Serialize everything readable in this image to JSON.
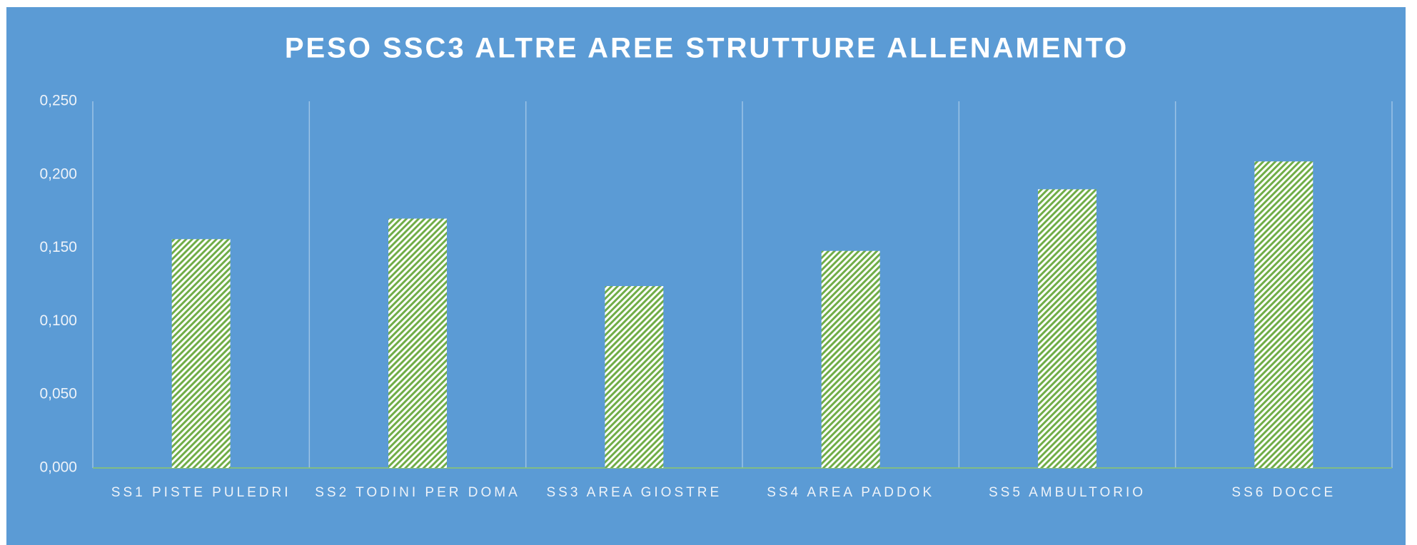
{
  "chart_data": {
    "type": "bar",
    "title": "PESO SSC3 ALTRE AREE STRUTTURE ALLENAMENTO",
    "categories": [
      "SS1 PISTE PULEDRI",
      "SS2 TODINI PER DOMA",
      "SS3 AREA GIOSTRE",
      "SS4 AREA PADDOK",
      "SS5 AMBULTORIO",
      "SS6 DOCCE"
    ],
    "values": [
      0.156,
      0.17,
      0.124,
      0.148,
      0.19,
      0.209
    ],
    "color": "#70ad47",
    "ylim": [
      0,
      0.25
    ],
    "yticks": [
      {
        "value": 0,
        "label": "0,000"
      },
      {
        "value": 0.05,
        "label": "0,050"
      },
      {
        "value": 0.1,
        "label": "0,100"
      },
      {
        "value": 0.15,
        "label": "0,150"
      },
      {
        "value": 0.2,
        "label": "0,200"
      },
      {
        "value": 0.25,
        "label": "0,250"
      }
    ],
    "grid": true
  }
}
